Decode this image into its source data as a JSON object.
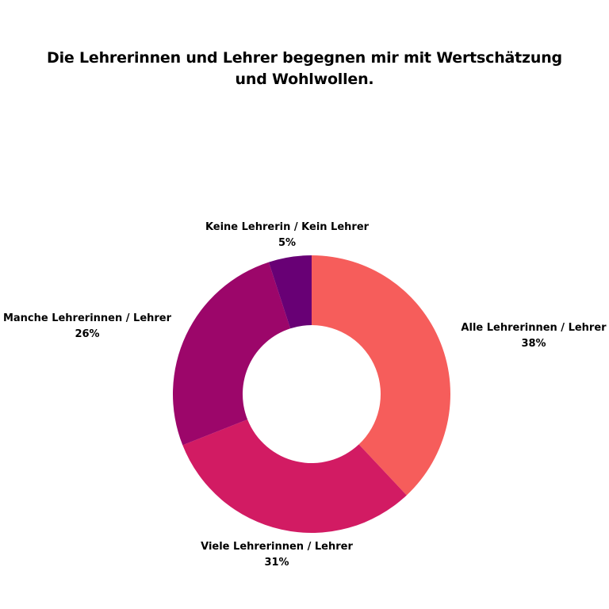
{
  "chart_data": {
    "type": "pie",
    "variant": "donut",
    "title": "Die Lehrerinnen und Lehrer begegnen mir mit Wertschätzung und Wohlwollen.",
    "series": [
      {
        "values": [
          38,
          31,
          26,
          5
        ],
        "labels": [
          "Alle Lehrerinnen / Lehrer",
          "Viele Lehrerinnen / Lehrer",
          "Manche Lehrerinnen / Lehrer",
          "Keine Lehrerin / Kein Lehrer"
        ],
        "value_labels": [
          "38%",
          "31%",
          "26%",
          "5%"
        ],
        "colors": [
          "#F65D5B",
          "#D21B63",
          "#9C066A",
          "#680075"
        ]
      }
    ],
    "legend": "none"
  }
}
